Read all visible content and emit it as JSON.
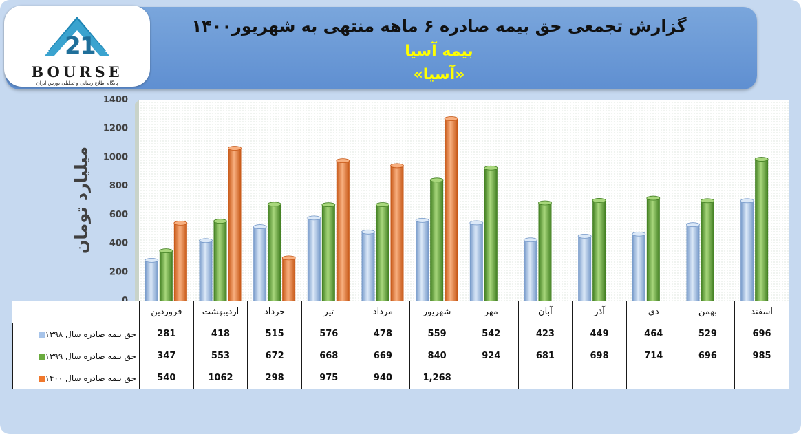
{
  "header": {
    "title": "گزارش تجمعی حق بیمه صادره ۶ ماهه منتهی به شهریور۱۴۰۰",
    "subtitle": "بیمه آسیا",
    "subtitle2": "«آسیا»"
  },
  "logo": {
    "word": "BOURSE",
    "tagline": "پایگاه اطلاع رسانی و تحلیلی بورس ایران",
    "icon": "logo-mountain-icon"
  },
  "colors": {
    "series_1398": "#a7c4ea",
    "series_1399": "#6aab3e",
    "series_1400": "#f0782c"
  },
  "chart_data": {
    "type": "bar",
    "title": "گزارش تجمعی حق بیمه صادره ۶ ماهه منتهی به شهریور۱۴۰۰",
    "xlabel": "",
    "ylabel": "میلیارد تومان",
    "ylim": [
      0,
      1400
    ],
    "yticks": [
      0,
      200,
      400,
      600,
      800,
      1000,
      1200,
      1400
    ],
    "grid": false,
    "legend": "table-left",
    "categories": [
      "فروردین",
      "اردیبهشت",
      "خرداد",
      "تیر",
      "مرداد",
      "شهریور",
      "مهر",
      "آبان",
      "آذر",
      "دی",
      "بهمن",
      "اسفند"
    ],
    "series": [
      {
        "name": "حق بیمه صادره سال ۱۳۹۸",
        "values": [
          281,
          418,
          515,
          576,
          478,
          559,
          542,
          423,
          449,
          464,
          529,
          696
        ],
        "labels": [
          "281",
          "418",
          "515",
          "576",
          "478",
          "559",
          "542",
          "423",
          "449",
          "464",
          "529",
          "696"
        ]
      },
      {
        "name": "حق بیمه صادره سال ۱۳۹۹",
        "values": [
          347,
          553,
          672,
          668,
          669,
          840,
          924,
          681,
          698,
          714,
          696,
          985
        ],
        "labels": [
          "347",
          "553",
          "672",
          "668",
          "669",
          "840",
          "924",
          "681",
          "698",
          "714",
          "696",
          "985"
        ]
      },
      {
        "name": "حق بیمه صادره سال ۱۴۰۰",
        "values": [
          540,
          1062,
          298,
          975,
          940,
          1268,
          null,
          null,
          null,
          null,
          null,
          null
        ],
        "labels": [
          "540",
          "1062",
          "298",
          "975",
          "940",
          "1,268",
          "",
          "",
          "",
          "",
          "",
          ""
        ]
      }
    ]
  }
}
